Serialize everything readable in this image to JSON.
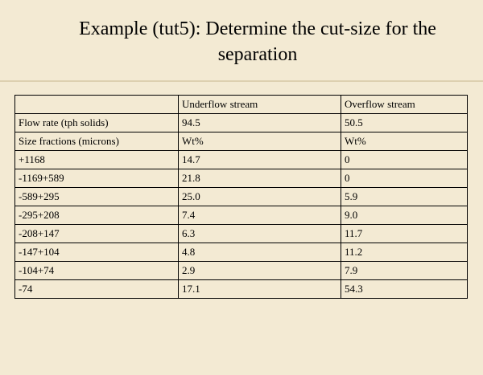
{
  "title_line1": "Example (tut5): Determine the cut-size for the",
  "title_line2": "separation",
  "table": {
    "headers": [
      "",
      "Underflow stream",
      "Overflow stream"
    ],
    "rows": [
      [
        "Flow rate (tph solids)",
        "94.5",
        "50.5"
      ],
      [
        "Size fractions (microns)",
        "Wt%",
        "Wt%"
      ],
      [
        "+1168",
        "14.7",
        "0"
      ],
      [
        "-1169+589",
        "21.8",
        "0"
      ],
      [
        "-589+295",
        "25.0",
        "5.9"
      ],
      [
        "-295+208",
        "7.4",
        "9.0"
      ],
      [
        "-208+147",
        "6.3",
        "11.7"
      ],
      [
        "-147+104",
        "4.8",
        "11.2"
      ],
      [
        "-104+74",
        "2.9",
        "7.9"
      ],
      [
        "-74",
        "17.1",
        "54.3"
      ]
    ]
  }
}
